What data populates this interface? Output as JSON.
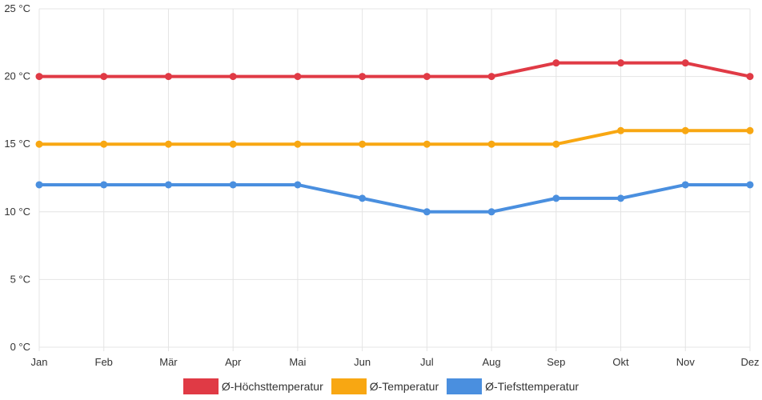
{
  "chart_data": {
    "type": "line",
    "categories": [
      "Jan",
      "Feb",
      "Mär",
      "Apr",
      "Mai",
      "Jun",
      "Jul",
      "Aug",
      "Sep",
      "Okt",
      "Nov",
      "Dez"
    ],
    "series": [
      {
        "name": "Ø-Höchsttemperatur",
        "color": "#e03a45",
        "values": [
          20,
          20,
          20,
          20,
          20,
          20,
          20,
          20,
          21,
          21,
          21,
          20
        ]
      },
      {
        "name": "Ø-Temperatur",
        "color": "#f8a712",
        "values": [
          15,
          15,
          15,
          15,
          15,
          15,
          15,
          15,
          15,
          16,
          16,
          16
        ]
      },
      {
        "name": "Ø-Tiefsttemperatur",
        "color": "#4a8fdf",
        "values": [
          12,
          12,
          12,
          12,
          12,
          11,
          10,
          10,
          11,
          11,
          12,
          12
        ]
      }
    ],
    "y_ticks": [
      "0 °C",
      "5 °C",
      "10 °C",
      "15 °C",
      "20 °C",
      "25 °C"
    ],
    "ylim": [
      0,
      25
    ],
    "grid": true,
    "legend_position": "bottom"
  }
}
